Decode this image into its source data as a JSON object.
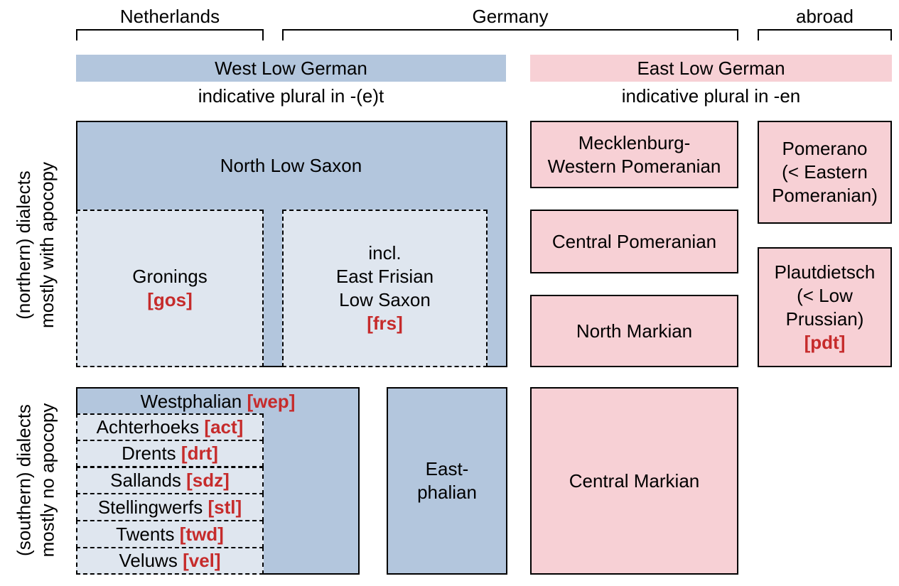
{
  "regions": {
    "netherlands": "Netherlands",
    "germany": "Germany",
    "abroad": "abroad"
  },
  "groups": {
    "west": {
      "title": "West Low German",
      "subtitle": "indicative plural in -(e)t",
      "color": "#b3c6dd"
    },
    "east": {
      "title": "East Low German",
      "subtitle": "indicative plural in -en",
      "color": "#f7d0d5"
    }
  },
  "rows": {
    "northern": {
      "line1": "(northern) dialects",
      "line2": "mostly with apocopy"
    },
    "southern": {
      "line1": "(southern) dialects",
      "line2": "mostly no apocopy"
    }
  },
  "north_low_saxon": {
    "title": "North Low Saxon",
    "gronings": {
      "name": "Gronings",
      "code": "[gos]"
    },
    "east_frisian": {
      "line1": "incl.",
      "line2": "East Frisian",
      "line3": "Low Saxon",
      "code": "[frs]"
    }
  },
  "westphalian": {
    "name": "Westphalian",
    "code": "[wep]",
    "subdialects": [
      {
        "name": "Achterhoeks",
        "code": "[act]"
      },
      {
        "name": "Drents",
        "code": "[drt]"
      },
      {
        "name": "Sallands",
        "code": "[sdz]"
      },
      {
        "name": "Stellingwerfs",
        "code": "[stl]"
      },
      {
        "name": "Twents",
        "code": "[twd]"
      },
      {
        "name": "Veluws",
        "code": "[vel]"
      }
    ]
  },
  "eastphalian": {
    "line1": "East-",
    "line2": "phalian"
  },
  "east_dialects": {
    "mecklenburg": {
      "line1": "Mecklenburg-",
      "line2": "Western Pomeranian"
    },
    "central_pomeranian": "Central Pomeranian",
    "north_markian": "North Markian",
    "central_markian": "Central Markian"
  },
  "abroad_dialects": {
    "pomerano": {
      "line1": "Pomerano",
      "line2": "(< Eastern",
      "line3": "Pomeranian)"
    },
    "plautdietsch": {
      "line1": "Plautdietsch",
      "line2": "(< Low",
      "line3": "Prussian)",
      "code": "[pdt]"
    }
  },
  "colors": {
    "west": "#b3c6dd",
    "west_light": "#dfe6ef",
    "east": "#f7d0d5",
    "code": "#c62b2b"
  }
}
